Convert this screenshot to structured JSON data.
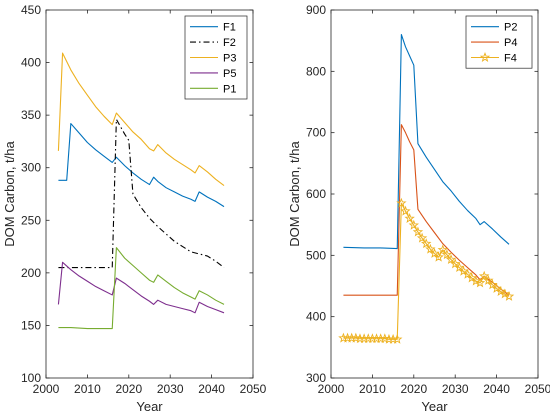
{
  "chart_data": [
    {
      "type": "line",
      "title": "",
      "xlabel": "Year",
      "ylabel": "DOM Carbon, t/ha",
      "xlim": [
        2000,
        2050
      ],
      "ylim": [
        100,
        450
      ],
      "xticks": [
        2000,
        2010,
        2020,
        2030,
        2040,
        2050
      ],
      "yticks": [
        100,
        150,
        200,
        250,
        300,
        350,
        400,
        450
      ],
      "grid": false,
      "legend_position": "top-right",
      "series": [
        {
          "name": "F1",
          "color": "#0072BD",
          "style": "solid",
          "marker": "none",
          "x": [
            2003,
            2005,
            2006,
            2008,
            2010,
            2012,
            2014,
            2016,
            2017,
            2019,
            2021,
            2023,
            2025,
            2026,
            2027,
            2029,
            2031,
            2033,
            2035,
            2036,
            2037,
            2039,
            2041,
            2043
          ],
          "y": [
            288,
            288,
            342,
            333,
            324,
            317,
            311,
            305,
            310,
            302,
            295,
            289,
            284,
            291,
            287,
            281,
            277,
            273,
            270,
            268,
            277,
            272,
            268,
            263
          ]
        },
        {
          "name": "F2",
          "color": "#000000",
          "style": "dashdot",
          "marker": "none",
          "x": [
            2003,
            2006,
            2010,
            2014,
            2016,
            2017,
            2019,
            2020,
            2021,
            2023,
            2025,
            2027,
            2029,
            2031,
            2033,
            2035,
            2037,
            2039,
            2041,
            2043
          ],
          "y": [
            205,
            205,
            205,
            205,
            205,
            346,
            332,
            326,
            275,
            262,
            252,
            244,
            237,
            230,
            225,
            220,
            218,
            216,
            211,
            205
          ]
        },
        {
          "name": "P3",
          "color": "#EDB120",
          "style": "solid",
          "marker": "none",
          "x": [
            2003,
            2004,
            2006,
            2008,
            2010,
            2012,
            2014,
            2016,
            2017,
            2019,
            2021,
            2023,
            2025,
            2026,
            2027,
            2029,
            2031,
            2033,
            2035,
            2036,
            2037,
            2039,
            2041,
            2043
          ],
          "y": [
            316,
            409,
            393,
            380,
            369,
            358,
            349,
            341,
            352,
            343,
            334,
            327,
            318,
            316,
            322,
            314,
            308,
            303,
            298,
            295,
            302,
            296,
            289,
            283
          ]
        },
        {
          "name": "P5",
          "color": "#7E2F8E",
          "style": "solid",
          "marker": "none",
          "x": [
            2003,
            2004,
            2006,
            2008,
            2010,
            2012,
            2014,
            2016,
            2017,
            2019,
            2021,
            2023,
            2025,
            2026,
            2027,
            2029,
            2031,
            2033,
            2035,
            2036,
            2037,
            2039,
            2041,
            2043
          ],
          "y": [
            170,
            210,
            203,
            197,
            192,
            187,
            183,
            179,
            195,
            190,
            184,
            178,
            173,
            170,
            174,
            170,
            168,
            166,
            164,
            162,
            172,
            168,
            165,
            162
          ]
        },
        {
          "name": "P1",
          "color": "#77AC30",
          "style": "solid",
          "marker": "none",
          "x": [
            2003,
            2006,
            2010,
            2014,
            2016,
            2017,
            2019,
            2021,
            2023,
            2025,
            2026,
            2027,
            2029,
            2031,
            2033,
            2035,
            2036,
            2037,
            2039,
            2041,
            2043
          ],
          "y": [
            148,
            148,
            147,
            147,
            147,
            224,
            214,
            207,
            200,
            193,
            191,
            198,
            192,
            186,
            181,
            177,
            175,
            183,
            179,
            174,
            170
          ]
        }
      ]
    },
    {
      "type": "line",
      "title": "",
      "xlabel": "Year",
      "ylabel": "DOM Carbon, t/ha",
      "xlim": [
        2000,
        2050
      ],
      "ylim": [
        300,
        900
      ],
      "xticks": [
        2000,
        2010,
        2020,
        2030,
        2040,
        2050
      ],
      "yticks": [
        300,
        400,
        500,
        600,
        700,
        800,
        900
      ],
      "grid": false,
      "legend_position": "top-right",
      "series": [
        {
          "name": "P2",
          "color": "#0072BD",
          "style": "solid",
          "marker": "none",
          "x": [
            2003,
            2008,
            2012,
            2016,
            2017,
            2018,
            2019,
            2020,
            2021,
            2023,
            2025,
            2027,
            2029,
            2031,
            2033,
            2035,
            2036,
            2037,
            2039,
            2041,
            2043
          ],
          "y": [
            513,
            512,
            512,
            511,
            860,
            840,
            825,
            810,
            682,
            660,
            640,
            620,
            605,
            588,
            573,
            560,
            550,
            555,
            543,
            530,
            518
          ]
        },
        {
          "name": "P4",
          "color": "#D95319",
          "style": "solid",
          "marker": "none",
          "x": [
            2003,
            2008,
            2012,
            2016,
            2017,
            2018,
            2019,
            2020,
            2021,
            2023,
            2025,
            2027,
            2029,
            2031,
            2033,
            2035,
            2036,
            2037,
            2039,
            2041,
            2043
          ],
          "y": [
            435,
            435,
            435,
            435,
            713,
            700,
            685,
            672,
            575,
            555,
            537,
            519,
            505,
            492,
            480,
            468,
            460,
            466,
            456,
            445,
            435
          ]
        },
        {
          "name": "F4",
          "color": "#EDB120",
          "style": "solid",
          "marker": "pentagram",
          "x": [
            2003,
            2004,
            2005,
            2006,
            2007,
            2008,
            2009,
            2010,
            2011,
            2012,
            2013,
            2014,
            2015,
            2016,
            2017,
            2018,
            2019,
            2020,
            2021,
            2022,
            2023,
            2024,
            2025,
            2026,
            2027,
            2028,
            2029,
            2030,
            2031,
            2032,
            2033,
            2034,
            2035,
            2036,
            2037,
            2038,
            2039,
            2040,
            2041,
            2042,
            2043
          ],
          "y": [
            365,
            365,
            365,
            365,
            364,
            364,
            364,
            364,
            364,
            364,
            364,
            363,
            363,
            363,
            585,
            572,
            560,
            549,
            538,
            528,
            519,
            510,
            503,
            497,
            509,
            501,
            493,
            486,
            480,
            474,
            469,
            463,
            458,
            455,
            466,
            459,
            452,
            446,
            441,
            437,
            433
          ]
        }
      ]
    }
  ]
}
